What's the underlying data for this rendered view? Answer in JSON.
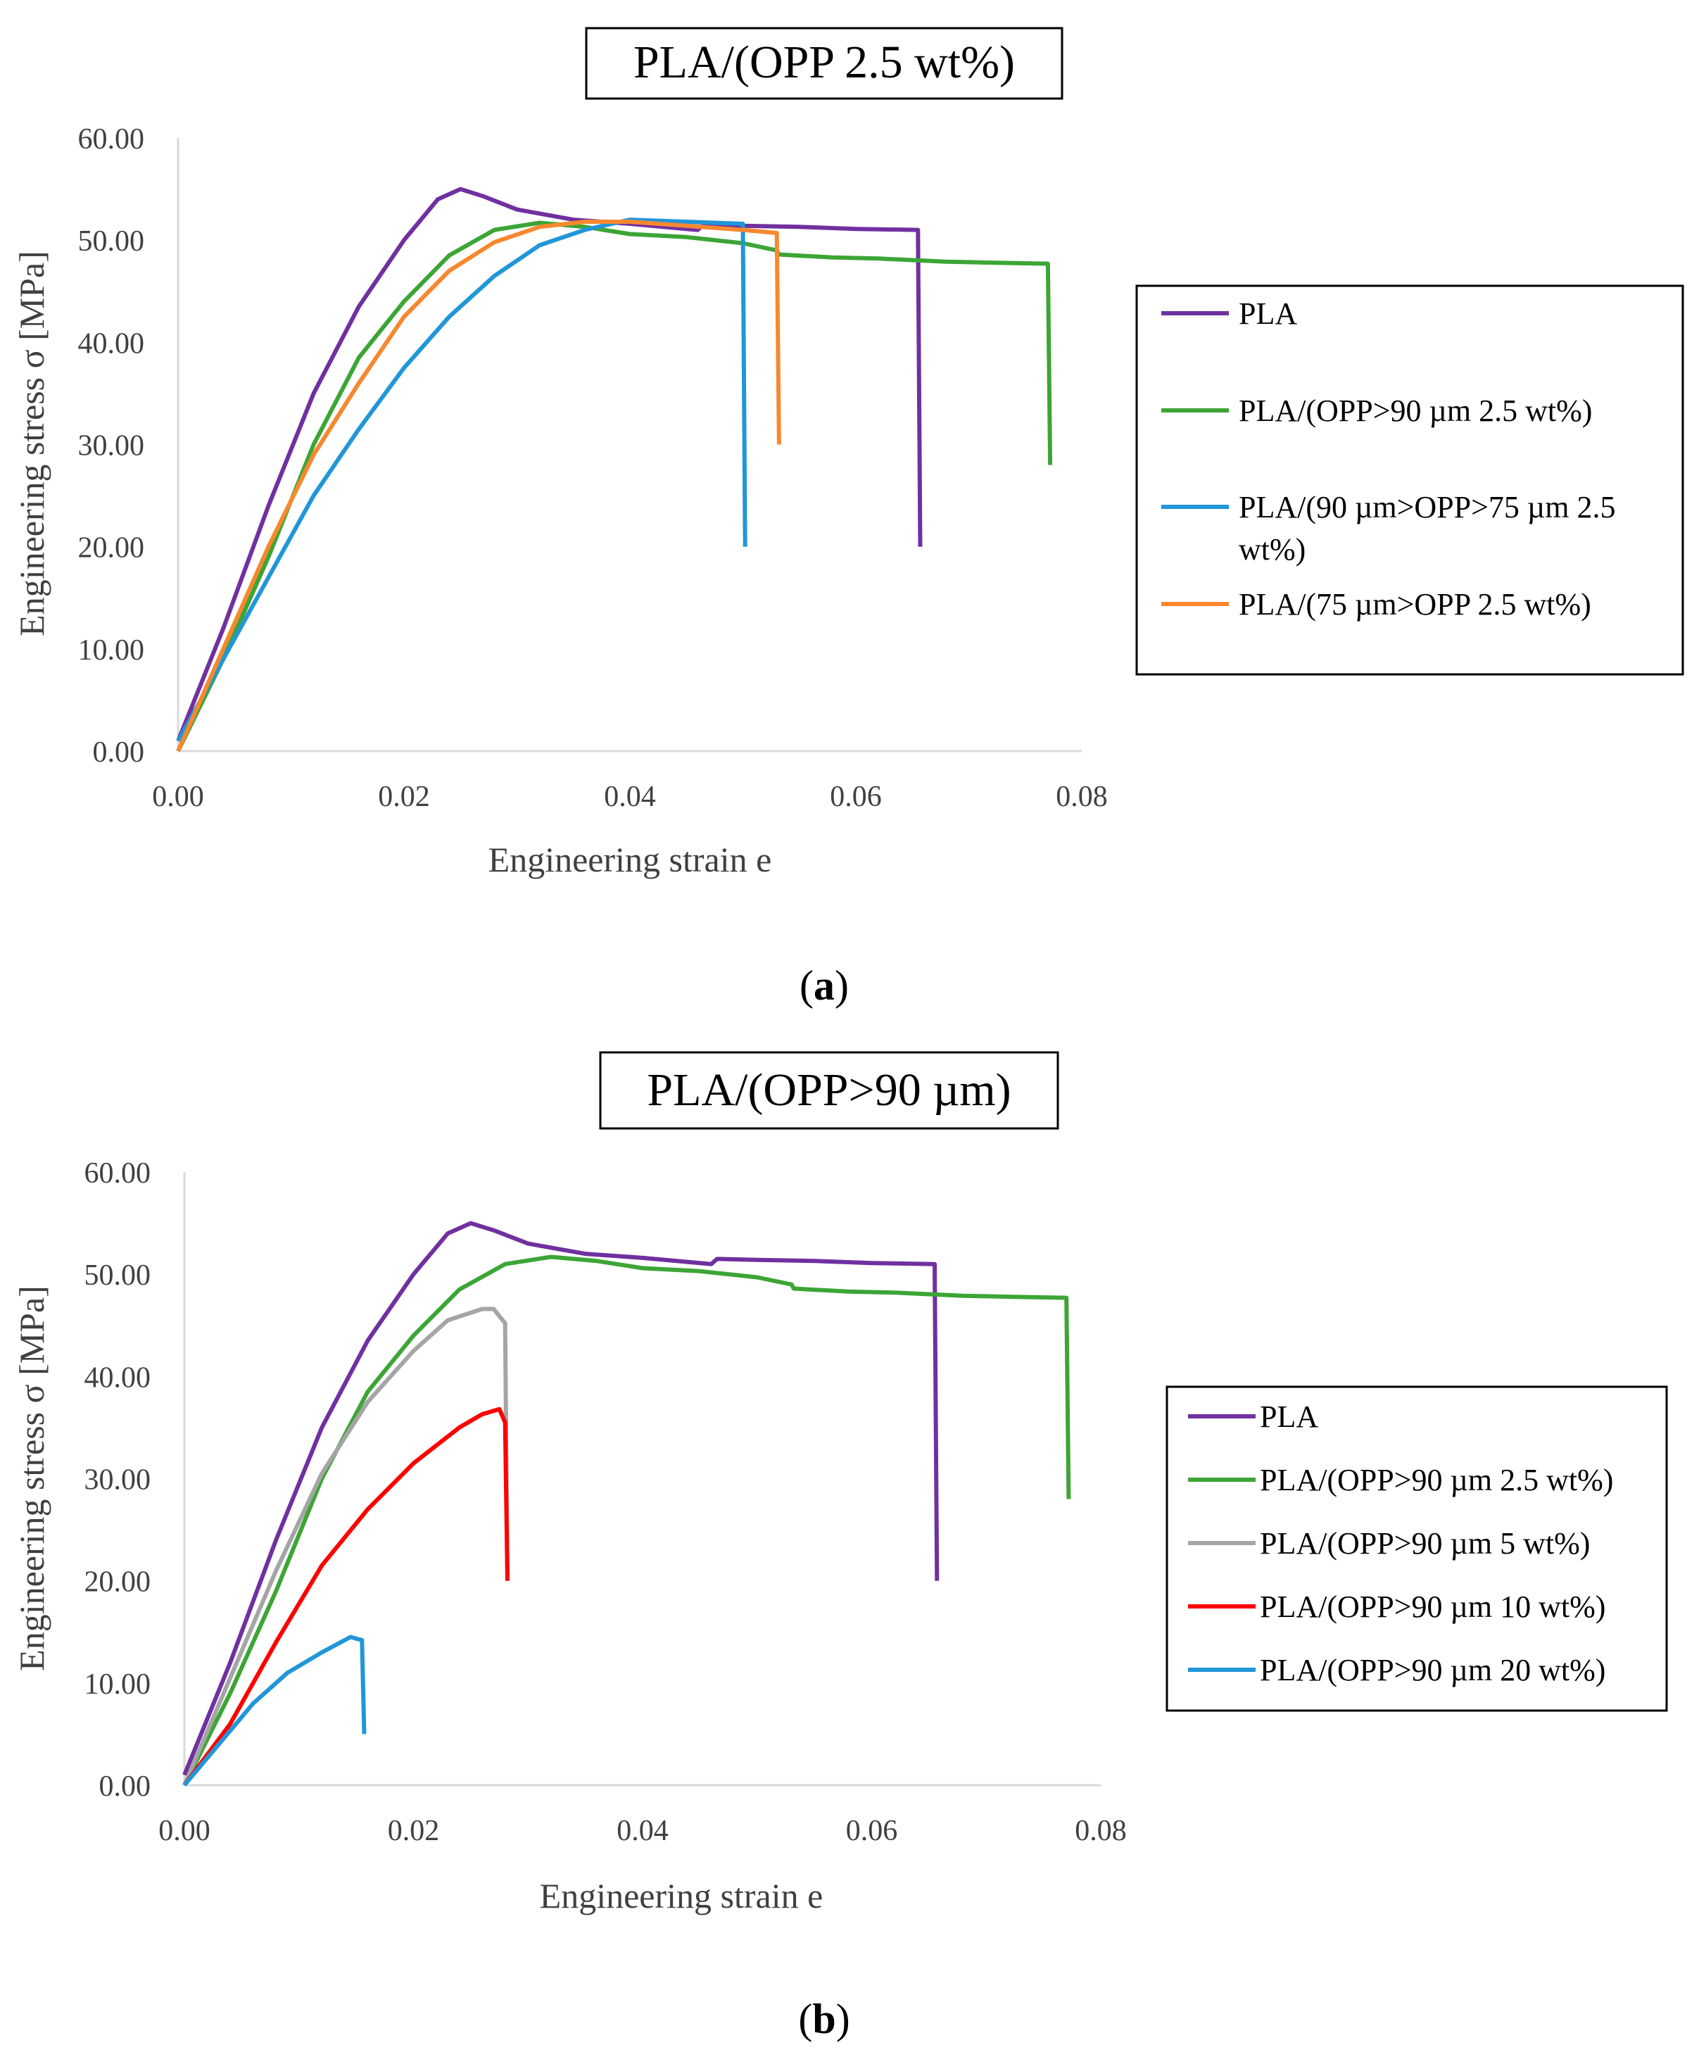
{
  "chart_data": [
    {
      "type": "line",
      "panel_label": "a",
      "title": "PLA/(OPP 2.5 wt%)",
      "xlabel": "Engineering strain e",
      "ylabel": "Engineering stress σ [MPa]",
      "xlim": [
        0,
        0.08
      ],
      "ylim": [
        0,
        60
      ],
      "x_ticks": [
        "0.00",
        "0.02",
        "0.04",
        "0.06",
        "0.08"
      ],
      "y_ticks": [
        "0.00",
        "10.00",
        "20.00",
        "30.00",
        "40.00",
        "50.00",
        "60.00"
      ],
      "grid": false,
      "legend_position": "right",
      "series": [
        {
          "name": "PLA",
          "color": "#7030A0",
          "points": [
            [
              0,
              1
            ],
            [
              0.004,
              12
            ],
            [
              0.008,
              24
            ],
            [
              0.012,
              35
            ],
            [
              0.016,
              43.5
            ],
            [
              0.02,
              50
            ],
            [
              0.023,
              54
            ],
            [
              0.025,
              55
            ],
            [
              0.027,
              54.3
            ],
            [
              0.03,
              53
            ],
            [
              0.035,
              52
            ],
            [
              0.04,
              51.6
            ],
            [
              0.045,
              51.1
            ],
            [
              0.046,
              51
            ],
            [
              0.0465,
              51.5
            ],
            [
              0.05,
              51.4
            ],
            [
              0.055,
              51.3
            ],
            [
              0.06,
              51.1
            ],
            [
              0.0655,
              51
            ],
            [
              0.0657,
              20
            ]
          ]
        },
        {
          "name": "PLA/(OPP>90 µm 2.5 wt%)",
          "color": "#3CA535",
          "points": [
            [
              0,
              0
            ],
            [
              0.004,
              9
            ],
            [
              0.008,
              19
            ],
            [
              0.012,
              30
            ],
            [
              0.016,
              38.5
            ],
            [
              0.02,
              44
            ],
            [
              0.024,
              48.5
            ],
            [
              0.028,
              51
            ],
            [
              0.032,
              51.7
            ],
            [
              0.036,
              51.3
            ],
            [
              0.04,
              50.6
            ],
            [
              0.045,
              50.3
            ],
            [
              0.05,
              49.7
            ],
            [
              0.053,
              49
            ],
            [
              0.0532,
              48.6
            ],
            [
              0.058,
              48.3
            ],
            [
              0.062,
              48.2
            ],
            [
              0.068,
              47.9
            ],
            [
              0.072,
              47.8
            ],
            [
              0.077,
              47.7
            ],
            [
              0.0772,
              28
            ]
          ]
        },
        {
          "name": "PLA/(90 µm>OPP>75 µm 2.5 wt%)",
          "color": "#2196D8",
          "points": [
            [
              0,
              1
            ],
            [
              0.004,
              9
            ],
            [
              0.008,
              17
            ],
            [
              0.012,
              25
            ],
            [
              0.016,
              31.5
            ],
            [
              0.02,
              37.5
            ],
            [
              0.024,
              42.5
            ],
            [
              0.028,
              46.5
            ],
            [
              0.032,
              49.5
            ],
            [
              0.036,
              51
            ],
            [
              0.04,
              52
            ],
            [
              0.045,
              51.8
            ],
            [
              0.05,
              51.6
            ],
            [
              0.0502,
              20
            ]
          ]
        },
        {
          "name": "PLA/(75 µm>OPP 2.5 wt%)",
          "color": "#F7882F",
          "points": [
            [
              0,
              0
            ],
            [
              0.004,
              10
            ],
            [
              0.008,
              20
            ],
            [
              0.012,
              29
            ],
            [
              0.016,
              36
            ],
            [
              0.02,
              42.5
            ],
            [
              0.024,
              47
            ],
            [
              0.028,
              49.8
            ],
            [
              0.032,
              51.3
            ],
            [
              0.036,
              51.8
            ],
            [
              0.04,
              51.8
            ],
            [
              0.045,
              51.4
            ],
            [
              0.05,
              51
            ],
            [
              0.053,
              50.7
            ],
            [
              0.0532,
              30
            ]
          ]
        }
      ]
    },
    {
      "type": "line",
      "panel_label": "b",
      "title": "PLA/(OPP>90 µm)",
      "xlabel": "Engineering strain e",
      "ylabel": "Engineering stress σ [MPa]",
      "xlim": [
        0,
        0.08
      ],
      "ylim": [
        0,
        60
      ],
      "x_ticks": [
        "0.00",
        "0.02",
        "0.04",
        "0.06",
        "0.08"
      ],
      "y_ticks": [
        "0.00",
        "10.00",
        "20.00",
        "30.00",
        "40.00",
        "50.00",
        "60.00"
      ],
      "grid": false,
      "legend_position": "right",
      "series": [
        {
          "name": "PLA",
          "color": "#7030A0",
          "points": [
            [
              0,
              1
            ],
            [
              0.004,
              12
            ],
            [
              0.008,
              24
            ],
            [
              0.012,
              35
            ],
            [
              0.016,
              43.5
            ],
            [
              0.02,
              50
            ],
            [
              0.023,
              54
            ],
            [
              0.025,
              55
            ],
            [
              0.027,
              54.3
            ],
            [
              0.03,
              53
            ],
            [
              0.035,
              52
            ],
            [
              0.04,
              51.6
            ],
            [
              0.045,
              51.1
            ],
            [
              0.046,
              51
            ],
            [
              0.0465,
              51.5
            ],
            [
              0.05,
              51.4
            ],
            [
              0.055,
              51.3
            ],
            [
              0.06,
              51.1
            ],
            [
              0.0655,
              51
            ],
            [
              0.0657,
              20
            ]
          ]
        },
        {
          "name": "PLA/(OPP>90 µm 2.5 wt%)",
          "color": "#3CA535",
          "points": [
            [
              0,
              0
            ],
            [
              0.004,
              9
            ],
            [
              0.008,
              19
            ],
            [
              0.012,
              30
            ],
            [
              0.016,
              38.5
            ],
            [
              0.02,
              44
            ],
            [
              0.024,
              48.5
            ],
            [
              0.028,
              51
            ],
            [
              0.032,
              51.7
            ],
            [
              0.036,
              51.3
            ],
            [
              0.04,
              50.6
            ],
            [
              0.045,
              50.3
            ],
            [
              0.05,
              49.7
            ],
            [
              0.053,
              49
            ],
            [
              0.0532,
              48.6
            ],
            [
              0.058,
              48.3
            ],
            [
              0.062,
              48.2
            ],
            [
              0.068,
              47.9
            ],
            [
              0.072,
              47.8
            ],
            [
              0.077,
              47.7
            ],
            [
              0.0772,
              28
            ]
          ]
        },
        {
          "name": "PLA/(OPP>90 µm 5 wt%)",
          "color": "#A5A5A5",
          "points": [
            [
              0,
              0
            ],
            [
              0.004,
              10.5
            ],
            [
              0.008,
              21
            ],
            [
              0.012,
              30.5
            ],
            [
              0.016,
              37.5
            ],
            [
              0.02,
              42.5
            ],
            [
              0.023,
              45.5
            ],
            [
              0.026,
              46.6
            ],
            [
              0.027,
              46.6
            ],
            [
              0.028,
              45.2
            ],
            [
              0.0282,
              20
            ]
          ]
        },
        {
          "name": "PLA/(OPP>90 µm 10 wt%)",
          "color": "#FF0000",
          "points": [
            [
              0,
              0
            ],
            [
              0.004,
              6
            ],
            [
              0.008,
              14
            ],
            [
              0.012,
              21.5
            ],
            [
              0.016,
              27
            ],
            [
              0.02,
              31.5
            ],
            [
              0.024,
              35
            ],
            [
              0.026,
              36.3
            ],
            [
              0.0275,
              36.8
            ],
            [
              0.028,
              35.5
            ],
            [
              0.0282,
              20
            ]
          ]
        },
        {
          "name": "PLA/(OPP>90 µm 20 wt%)",
          "color": "#2196D8",
          "points": [
            [
              0,
              0
            ],
            [
              0.003,
              4
            ],
            [
              0.006,
              8
            ],
            [
              0.009,
              11
            ],
            [
              0.012,
              13
            ],
            [
              0.0145,
              14.5
            ],
            [
              0.0155,
              14.2
            ],
            [
              0.0157,
              5
            ]
          ]
        }
      ]
    }
  ]
}
